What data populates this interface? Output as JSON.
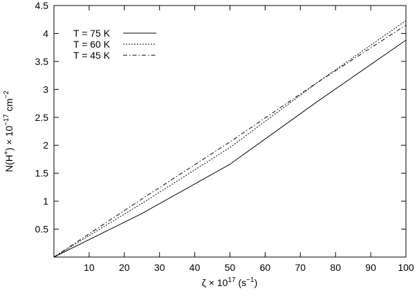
{
  "chart_data": {
    "type": "line",
    "xlabel_html": "ζ × 10¹⁷ (s⁻¹)",
    "xlabel": "ζ × 10^17 (s^-1)",
    "ylabel": "N(H^+) × 10^-17 cm^-2",
    "xlim": [
      0,
      100
    ],
    "ylim": [
      0,
      4.5
    ],
    "xticks": [
      10,
      20,
      30,
      40,
      50,
      60,
      70,
      80,
      90,
      100
    ],
    "yticks": [
      0.5,
      1,
      1.5,
      2,
      2.5,
      3,
      3.5,
      4,
      4.5
    ],
    "ytick_labels": [
      "0.5",
      "1",
      "1.5",
      "2",
      "2.5",
      "3",
      "3.5",
      "4",
      "4.5"
    ],
    "legend_position": "top-left",
    "grid": false,
    "series": [
      {
        "name": "T = 75 K",
        "style": "solid",
        "x": [
          0,
          25,
          50,
          75,
          100
        ],
        "y": [
          0.0,
          0.78,
          1.66,
          2.79,
          3.88
        ]
      },
      {
        "name": "T = 60 K",
        "style": "dotted",
        "x": [
          0,
          25,
          50,
          75,
          100
        ],
        "y": [
          0.0,
          0.96,
          1.96,
          3.13,
          4.23
        ]
      },
      {
        "name": "T = 45 K",
        "style": "dashdot",
        "x": [
          0,
          25,
          50,
          75,
          100
        ],
        "y": [
          0.0,
          1.04,
          2.06,
          3.13,
          4.15
        ]
      }
    ]
  }
}
